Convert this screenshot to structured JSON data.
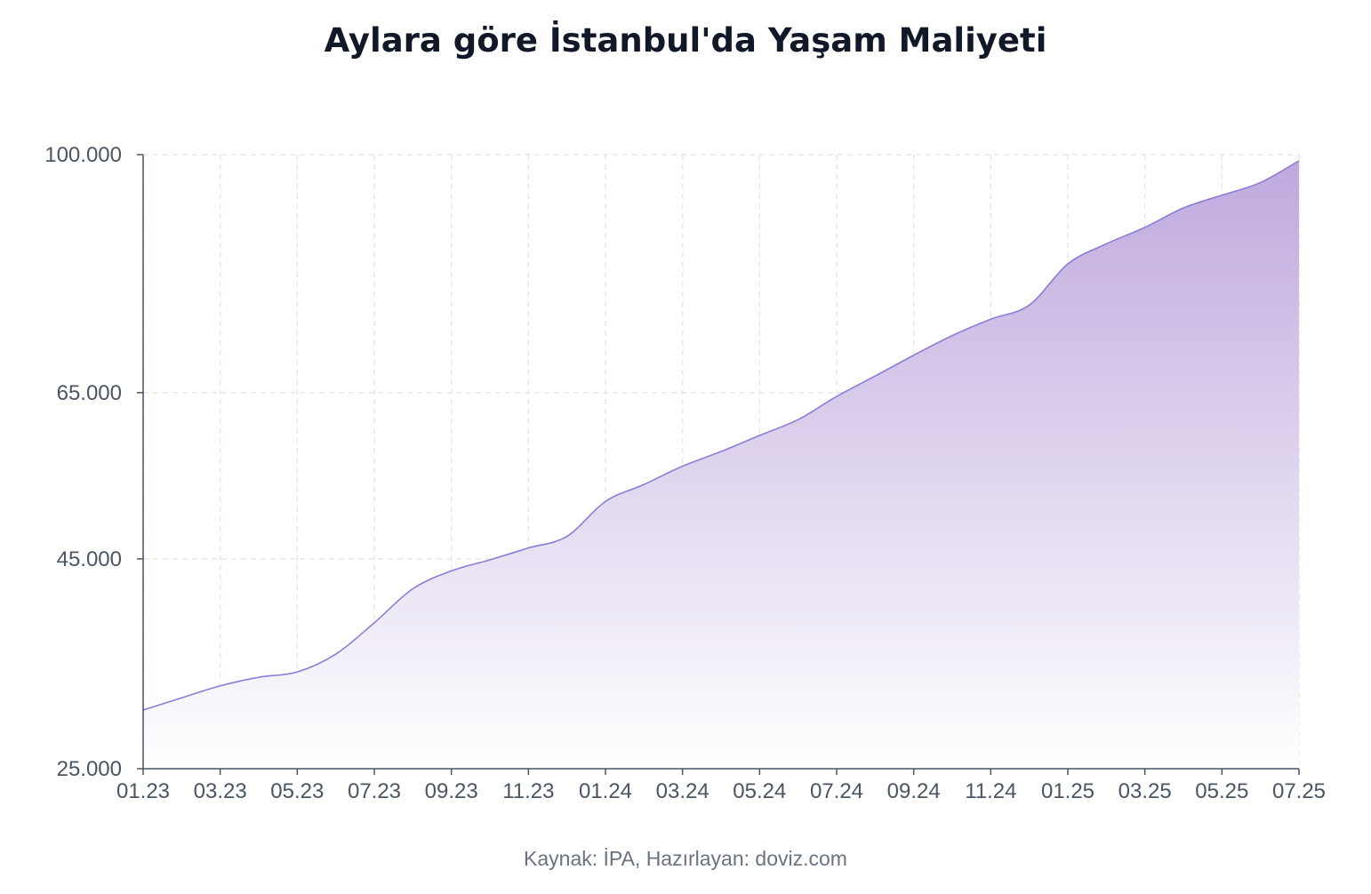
{
  "chart_data": {
    "type": "area",
    "title": "Aylara göre İstanbul'da Yaşam Maliyeti",
    "source": "Kaynak: İPA, Hazırlayan: doviz.com",
    "x_tick_labels": [
      "01.23",
      "03.23",
      "05.23",
      "07.23",
      "09.23",
      "11.23",
      "01.24",
      "03.24",
      "05.24",
      "07.24",
      "09.24",
      "11.24",
      "01.25",
      "03.25",
      "05.25",
      "07.25"
    ],
    "y_tick_values": [
      25000,
      45000,
      65000,
      100000
    ],
    "y_tick_labels": [
      "25.000",
      "45.000",
      "65.000",
      "100.000"
    ],
    "ylim": [
      25000,
      100000
    ],
    "y_scale": "sqrt",
    "grid": true,
    "x": [
      "01.23",
      "02.23",
      "03.23",
      "04.23",
      "05.23",
      "06.23",
      "07.23",
      "08.23",
      "09.23",
      "10.23",
      "11.23",
      "12.23",
      "01.24",
      "02.24",
      "03.24",
      "04.24",
      "05.24",
      "06.24",
      "07.24",
      "08.24",
      "09.24",
      "10.24",
      "11.24",
      "12.24",
      "01.25",
      "02.25",
      "03.25",
      "04.25",
      "05.25",
      "06.25",
      "07.25"
    ],
    "series": [
      {
        "values": [
          30000,
          31100,
          32200,
          33000,
          33500,
          35200,
          38300,
          41800,
          43700,
          44900,
          46200,
          47500,
          51500,
          53500,
          55700,
          57500,
          59500,
          61500,
          64500,
          67200,
          70000,
          72700,
          75000,
          77000,
          83000,
          86000,
          88500,
          91500,
          93500,
          95500,
          99000
        ],
        "color": "#8b7dd6"
      }
    ],
    "colors": {
      "line": "#8b7dd6",
      "fill_top": "#bfa9de",
      "fill_bottom": "#ffffff",
      "grid": "#e5e7eb",
      "axis": "#4b5563",
      "title": "#111827",
      "source": "#6b7280"
    }
  }
}
